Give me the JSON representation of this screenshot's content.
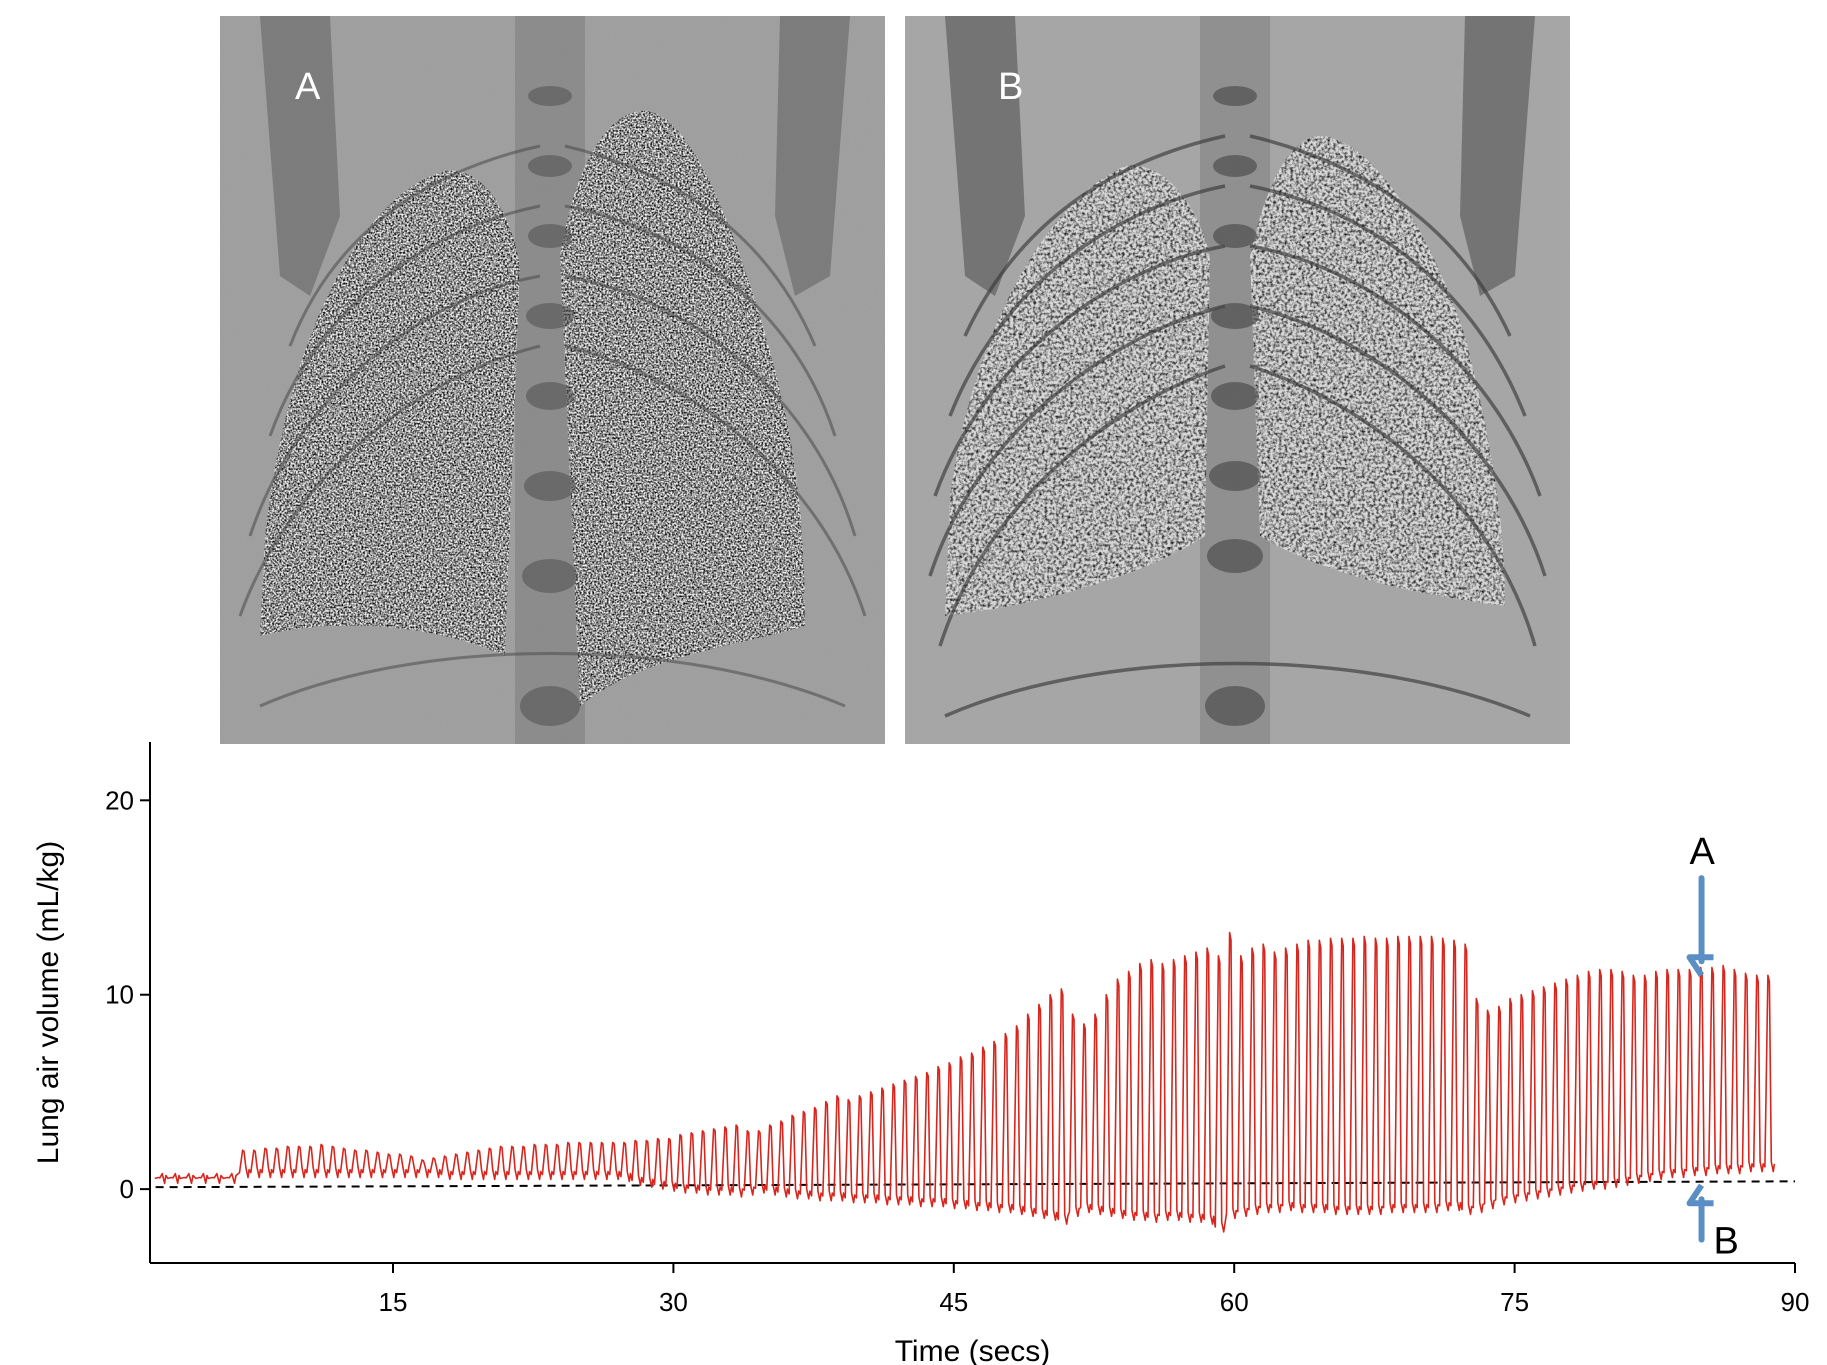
{
  "panels": [
    {
      "label": "A"
    },
    {
      "label": "B"
    }
  ],
  "chart_data": {
    "type": "line",
    "title": "",
    "xlabel": "Time (secs)",
    "ylabel": "Lung air volume (mL/kg)",
    "xlim": [
      2,
      90
    ],
    "ylim": [
      -3.8,
      23
    ],
    "xticks": [
      15,
      30,
      45,
      60,
      75,
      90
    ],
    "yticks": [
      0,
      10,
      20
    ],
    "grid": false,
    "line_color": "#d7261e",
    "baseline": {
      "style": "dashed",
      "y_start": 0.1,
      "y_end": 0.4
    },
    "series": [
      {
        "name": "",
        "breath_peaks_x": [
          2.5,
          3.2,
          3.9,
          4.7,
          5.4,
          6.2,
          7.0,
          7.6,
          8.2,
          8.8,
          9.4,
          10.0,
          10.6,
          11.2,
          11.8,
          12.4,
          13.0,
          13.6,
          14.2,
          14.8,
          15.4,
          16.0,
          16.6,
          17.2,
          17.8,
          18.4,
          19.0,
          19.6,
          20.2,
          20.8,
          21.4,
          22.0,
          22.6,
          23.2,
          23.8,
          24.4,
          25.0,
          25.6,
          26.2,
          26.8,
          27.4,
          28.0,
          28.6,
          29.2,
          29.8,
          30.4,
          31.0,
          31.6,
          32.2,
          32.8,
          33.4,
          34.0,
          34.6,
          35.2,
          35.8,
          36.4,
          37.0,
          37.6,
          38.2,
          38.8,
          39.4,
          40.0,
          40.6,
          41.2,
          41.8,
          42.4,
          43.0,
          43.6,
          44.2,
          44.8,
          45.4,
          46.0,
          46.6,
          47.2,
          47.8,
          48.4,
          49.0,
          49.6,
          50.2,
          50.8,
          51.4,
          52.0,
          52.6,
          53.2,
          53.8,
          54.4,
          55.0,
          55.6,
          56.2,
          56.8,
          57.4,
          58.0,
          58.6,
          59.2,
          59.8,
          60.4,
          61.0,
          61.6,
          62.2,
          62.8,
          63.4,
          64.0,
          64.6,
          65.2,
          65.8,
          66.4,
          67.0,
          67.6,
          68.2,
          68.8,
          69.4,
          70.0,
          70.6,
          71.2,
          71.8,
          72.4,
          73.0,
          73.6,
          74.2,
          74.8,
          75.4,
          76.0,
          76.6,
          77.2,
          77.8,
          78.4,
          79.0,
          79.6,
          80.2,
          80.8,
          81.4,
          82.0,
          82.6,
          83.2,
          83.8,
          84.4,
          85.0,
          85.6,
          86.2,
          86.8,
          87.4,
          88.0,
          88.6,
          89.2,
          89.8
        ],
        "breath_peaks_y": [
          0.6,
          0.6,
          0.6,
          0.6,
          0.6,
          0.6,
          2.0,
          2.0,
          2.1,
          2.1,
          2.2,
          2.2,
          2.2,
          2.3,
          2.2,
          2.1,
          2.0,
          2.0,
          1.9,
          1.8,
          1.8,
          1.7,
          1.5,
          1.6,
          1.7,
          1.8,
          1.9,
          2.0,
          2.1,
          2.2,
          2.2,
          2.2,
          2.3,
          2.3,
          2.3,
          2.4,
          2.4,
          2.4,
          2.4,
          2.4,
          2.4,
          2.5,
          2.5,
          2.6,
          2.6,
          2.8,
          2.9,
          3.0,
          3.1,
          3.2,
          3.3,
          3.0,
          3.0,
          3.3,
          3.5,
          3.8,
          4.0,
          4.2,
          4.5,
          4.8,
          4.6,
          4.8,
          5.0,
          5.2,
          5.4,
          5.6,
          5.8,
          6.0,
          6.3,
          6.5,
          6.8,
          7.0,
          7.3,
          7.6,
          8.0,
          8.4,
          9.0,
          9.5,
          10.0,
          10.3,
          9.0,
          8.5,
          9.0,
          10.0,
          10.8,
          11.2,
          11.6,
          11.8,
          11.6,
          11.8,
          12.0,
          12.2,
          12.4,
          12.0,
          13.2,
          12.0,
          12.4,
          12.6,
          12.2,
          12.4,
          12.6,
          12.8,
          12.8,
          12.9,
          12.9,
          12.9,
          13.0,
          12.9,
          12.9,
          13.0,
          13.0,
          13.0,
          13.0,
          12.9,
          12.8,
          12.6,
          9.8,
          9.2,
          9.4,
          9.8,
          10.0,
          10.2,
          10.4,
          10.6,
          10.8,
          11.0,
          11.2,
          11.3,
          11.3,
          11.2,
          11.0,
          11.0,
          11.2,
          11.3,
          11.3,
          11.3,
          11.4,
          11.4,
          11.5,
          11.3,
          11.1,
          11.0,
          11.0,
          11.0
        ],
        "breath_troughs_y": [
          0.3,
          0.3,
          0.3,
          0.3,
          0.3,
          0.3,
          0.6,
          0.6,
          0.6,
          0.6,
          0.6,
          0.6,
          0.6,
          0.6,
          0.6,
          0.6,
          0.6,
          0.6,
          0.6,
          0.6,
          0.6,
          0.6,
          0.6,
          0.6,
          0.5,
          0.5,
          0.5,
          0.5,
          0.5,
          0.5,
          0.5,
          0.5,
          0.5,
          0.5,
          0.5,
          0.5,
          0.5,
          0.5,
          0.5,
          0.5,
          0.4,
          0.2,
          0.1,
          0.0,
          -0.1,
          -0.2,
          -0.2,
          -0.3,
          -0.3,
          -0.3,
          -0.4,
          -0.3,
          -0.2,
          -0.3,
          -0.4,
          -0.5,
          -0.5,
          -0.6,
          -0.6,
          -0.6,
          -0.7,
          -0.7,
          -0.7,
          -0.8,
          -0.8,
          -0.8,
          -0.9,
          -0.9,
          -0.9,
          -1.0,
          -1.0,
          -1.1,
          -1.1,
          -1.2,
          -1.2,
          -1.3,
          -1.4,
          -1.5,
          -1.6,
          -1.8,
          -1.4,
          -1.2,
          -1.3,
          -1.4,
          -1.5,
          -1.6,
          -1.6,
          -1.7,
          -1.6,
          -1.6,
          -1.7,
          -1.7,
          -1.8,
          -2.2,
          -1.5,
          -1.4,
          -1.3,
          -1.2,
          -1.2,
          -1.1,
          -1.2,
          -1.2,
          -1.2,
          -1.3,
          -1.3,
          -1.3,
          -1.3,
          -1.3,
          -1.2,
          -1.2,
          -1.2,
          -1.2,
          -1.2,
          -1.1,
          -1.1,
          -1.3,
          -1.2,
          -1.0,
          -0.8,
          -0.7,
          -0.6,
          -0.5,
          -0.4,
          -0.3,
          -0.2,
          -0.1,
          0.0,
          0.0,
          0.1,
          0.2,
          0.3,
          0.4,
          0.5,
          0.6,
          0.6,
          0.7,
          0.7,
          0.8,
          0.8,
          0.8,
          0.9,
          0.9,
          0.9
        ]
      }
    ],
    "annotations": [
      {
        "label": "A",
        "x": 85,
        "y_from": 16,
        "y_to": 11,
        "arrow_color": "#5b8ec4"
      },
      {
        "label": "B",
        "x": 85,
        "y_from": -2.6,
        "y_to": 0.2,
        "arrow_color": "#5b8ec4"
      }
    ]
  }
}
